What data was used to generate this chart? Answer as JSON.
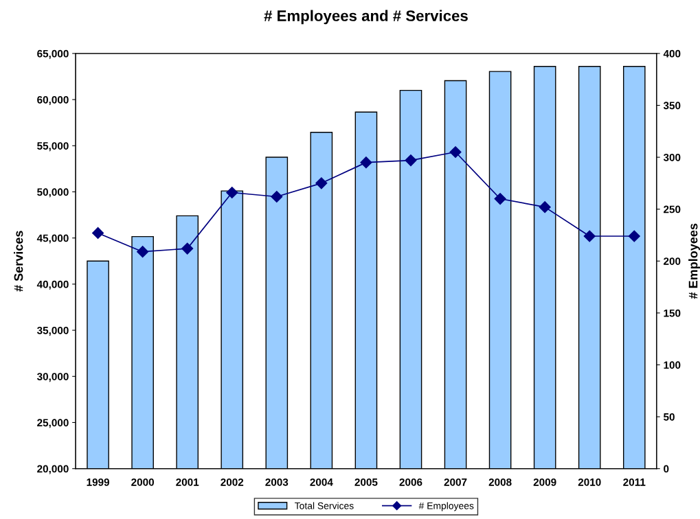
{
  "chart_data": {
    "type": "bar",
    "title": "# Employees and # Services",
    "ylabel": "# Services",
    "y2label": "# Employees",
    "categories": [
      "1999",
      "2000",
      "2001",
      "2002",
      "2003",
      "2004",
      "2005",
      "2006",
      "2007",
      "2008",
      "2009",
      "2010",
      "2011"
    ],
    "series": [
      {
        "name": "Total Services",
        "color": "#99ccff",
        "values": [
          42500,
          45150,
          47400,
          50100,
          53750,
          56450,
          58650,
          61000,
          62050,
          63050,
          63600,
          63600,
          63600
        ]
      },
      {
        "name": "# Employees",
        "type": "line",
        "axis": "y2",
        "color": "#000080",
        "marker": "diamond",
        "line_style": "solid",
        "values": [
          227,
          209,
          212,
          266,
          262,
          275,
          295,
          297,
          305,
          260,
          252,
          224,
          224
        ]
      }
    ],
    "ylim": [
      20000,
      65000
    ],
    "yticks": [
      {
        "value": 20000,
        "label": "20,000"
      },
      {
        "value": 25000,
        "label": "25,000"
      },
      {
        "value": 30000,
        "label": "30,000"
      },
      {
        "value": 35000,
        "label": "35,000"
      },
      {
        "value": 40000,
        "label": "40,000"
      },
      {
        "value": 45000,
        "label": "45,000"
      },
      {
        "value": 50000,
        "label": "50,000"
      },
      {
        "value": 55000,
        "label": "55,000"
      },
      {
        "value": 60000,
        "label": "60,000"
      },
      {
        "value": 65000,
        "label": "65,000"
      }
    ],
    "y2lim": [
      0,
      400
    ],
    "y2ticks": [
      0,
      50,
      100,
      150,
      200,
      250,
      300,
      350,
      400
    ],
    "grid": false,
    "legend": "bottom"
  }
}
